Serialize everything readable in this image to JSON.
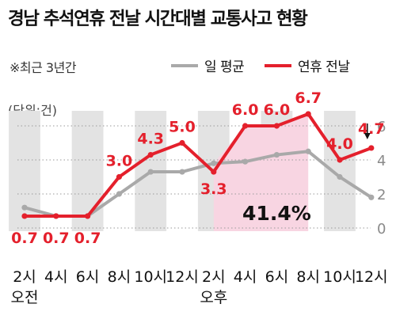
{
  "title": "경남 추석연휴 전날 시간대별 교통사고 현황",
  "note": "※최근 3년간",
  "unit_label": "(단위:건)",
  "colors": {
    "avg": "#a9a9a9",
    "holiday": "#e4202c",
    "band": "#e3e3e3",
    "highlight": "#f8d5e2"
  },
  "chart_data": {
    "type": "line",
    "title": "경남 추석연휴 전날 시간대별 교통사고 현황",
    "ylabel": "(단위:건)",
    "ylim": [
      0,
      7
    ],
    "yticks": [
      "0",
      "2",
      "4",
      "6"
    ],
    "xtick_labels": [
      "2시",
      "4시",
      "6시",
      "8시",
      "10시",
      "12시",
      "2시",
      "4시",
      "6시",
      "8시",
      "10시",
      "12시"
    ],
    "xtick_sublabels": [
      "오전",
      "",
      "",
      "",
      "",
      "",
      "오후",
      "",
      "",
      "",
      "",
      ""
    ],
    "series": [
      {
        "name": "일 평균",
        "values": [
          1.2,
          0.7,
          0.7,
          2.0,
          3.3,
          3.3,
          3.8,
          3.9,
          4.3,
          4.5,
          3.0,
          1.8
        ]
      },
      {
        "name": "연휴 전날",
        "values": [
          0.7,
          0.7,
          0.7,
          3.0,
          4.3,
          5.0,
          3.3,
          6.0,
          6.0,
          6.7,
          4.0,
          4.7
        ]
      }
    ],
    "data_labels": [
      "0.7",
      "0.7",
      "0.7",
      "3.0",
      "4.3",
      "5.0",
      "3.3",
      "6.0",
      "6.0",
      "6.7",
      "4.0",
      "4.7"
    ],
    "annotation": "41.4%",
    "grid": true
  }
}
